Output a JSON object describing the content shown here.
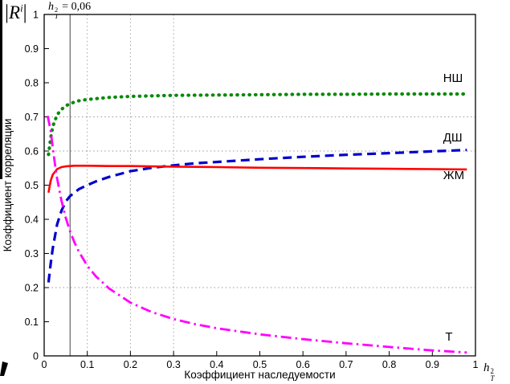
{
  "formulas": {
    "r": {
      "open_bar": "|",
      "base": "R",
      "sup": "i",
      "close_bar": "|"
    },
    "vline": {
      "base": "h",
      "sup": "2",
      "sub": "T",
      "eq": " = 0,06"
    },
    "x_symbol": {
      "base": "h",
      "sup": "2",
      "sub": "T"
    }
  },
  "chart_data": {
    "type": "line",
    "title": "",
    "xlabel": "Коэффициент наследуемости",
    "ylabel": "Коэффициент корреляции",
    "xlim": [
      0,
      1
    ],
    "ylim": [
      0,
      1
    ],
    "x_ticks": [
      0,
      0.1,
      0.2,
      0.3,
      0.4,
      0.5,
      0.6,
      0.7,
      0.8,
      0.9,
      1
    ],
    "x_tick_labels": [
      "0",
      "0.1",
      "0.2",
      "0.3",
      "0.4",
      "0.5",
      "0.6",
      "0.7",
      "0.8",
      "0.9",
      "1"
    ],
    "y_ticks": [
      0,
      0.1,
      0.2,
      0.3,
      0.4,
      0.5,
      0.6,
      0.7,
      0.8,
      0.9,
      1
    ],
    "y_tick_labels": [
      "0",
      "0.1",
      "0.2",
      "0.3",
      "0.4",
      "0.5",
      "0.6",
      "0.7",
      "0.8",
      "0.9",
      "1"
    ],
    "grid": {
      "x_dotted": [
        0.1,
        0.2,
        0.3
      ],
      "y_dotted": [
        0.2,
        0.6,
        0.7
      ]
    },
    "vline": {
      "x": 0.06
    },
    "series": [
      {
        "id": "nsh",
        "name": "НШ",
        "color": "#0a8a0a",
        "style": "dotted",
        "width": 4.2,
        "label_pos": [
          0.925,
          0.802
        ],
        "points": [
          [
            0.01,
            0.59
          ],
          [
            0.015,
            0.638
          ],
          [
            0.02,
            0.672
          ],
          [
            0.03,
            0.706
          ],
          [
            0.04,
            0.722
          ],
          [
            0.05,
            0.732
          ],
          [
            0.06,
            0.739
          ],
          [
            0.08,
            0.747
          ],
          [
            0.1,
            0.751
          ],
          [
            0.15,
            0.757
          ],
          [
            0.2,
            0.76
          ],
          [
            0.3,
            0.763
          ],
          [
            0.4,
            0.764
          ],
          [
            0.5,
            0.765
          ],
          [
            0.6,
            0.766
          ],
          [
            0.7,
            0.766
          ],
          [
            0.8,
            0.767
          ],
          [
            0.9,
            0.767
          ],
          [
            0.98,
            0.767
          ]
        ]
      },
      {
        "id": "dsh",
        "name": "ДШ",
        "color": "#0000cc",
        "style": "dashed",
        "width": 3.2,
        "label_pos": [
          0.925,
          0.628
        ],
        "points": [
          [
            0.01,
            0.215
          ],
          [
            0.015,
            0.27
          ],
          [
            0.02,
            0.315
          ],
          [
            0.03,
            0.385
          ],
          [
            0.04,
            0.425
          ],
          [
            0.05,
            0.452
          ],
          [
            0.06,
            0.468
          ],
          [
            0.08,
            0.488
          ],
          [
            0.1,
            0.5
          ],
          [
            0.12,
            0.511
          ],
          [
            0.15,
            0.524
          ],
          [
            0.2,
            0.541
          ],
          [
            0.25,
            0.551
          ],
          [
            0.3,
            0.558
          ],
          [
            0.35,
            0.564
          ],
          [
            0.4,
            0.568
          ],
          [
            0.5,
            0.576
          ],
          [
            0.6,
            0.583
          ],
          [
            0.7,
            0.589
          ],
          [
            0.8,
            0.594
          ],
          [
            0.9,
            0.599
          ],
          [
            0.98,
            0.603
          ]
        ]
      },
      {
        "id": "zhm",
        "name": "ЖМ",
        "color": "#ff0000",
        "style": "solid",
        "width": 2.6,
        "label_pos": [
          0.925,
          0.518
        ],
        "points": [
          [
            0.01,
            0.478
          ],
          [
            0.015,
            0.513
          ],
          [
            0.02,
            0.531
          ],
          [
            0.03,
            0.547
          ],
          [
            0.04,
            0.553
          ],
          [
            0.05,
            0.555
          ],
          [
            0.07,
            0.557
          ],
          [
            0.1,
            0.557
          ],
          [
            0.15,
            0.556
          ],
          [
            0.2,
            0.556
          ],
          [
            0.3,
            0.554
          ],
          [
            0.4,
            0.553
          ],
          [
            0.5,
            0.551
          ],
          [
            0.6,
            0.55
          ],
          [
            0.7,
            0.549
          ],
          [
            0.8,
            0.548
          ],
          [
            0.9,
            0.547
          ],
          [
            0.98,
            0.546
          ]
        ]
      },
      {
        "id": "t",
        "name": "Т",
        "color": "#ff00ff",
        "style": "dashdot",
        "width": 2.8,
        "label_pos": [
          0.93,
          0.045
        ],
        "points": [
          [
            0.008,
            0.703
          ],
          [
            0.015,
            0.66
          ],
          [
            0.02,
            0.61
          ],
          [
            0.025,
            0.562
          ],
          [
            0.03,
            0.52
          ],
          [
            0.04,
            0.455
          ],
          [
            0.05,
            0.405
          ],
          [
            0.06,
            0.365
          ],
          [
            0.07,
            0.333
          ],
          [
            0.08,
            0.306
          ],
          [
            0.1,
            0.264
          ],
          [
            0.12,
            0.233
          ],
          [
            0.15,
            0.198
          ],
          [
            0.2,
            0.156
          ],
          [
            0.25,
            0.128
          ],
          [
            0.3,
            0.108
          ],
          [
            0.35,
            0.093
          ],
          [
            0.4,
            0.081
          ],
          [
            0.5,
            0.063
          ],
          [
            0.6,
            0.049
          ],
          [
            0.7,
            0.037
          ],
          [
            0.8,
            0.026
          ],
          [
            0.9,
            0.016
          ],
          [
            0.98,
            0.01
          ]
        ]
      }
    ]
  }
}
